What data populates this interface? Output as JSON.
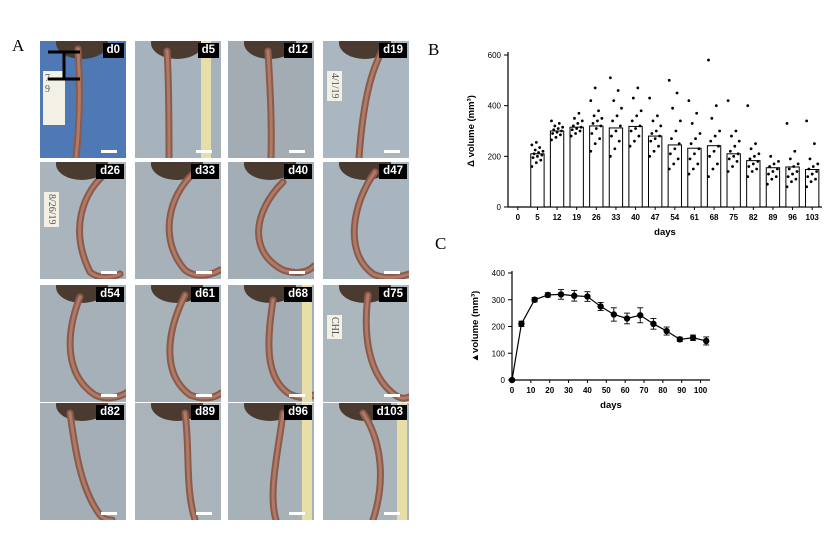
{
  "panels": {
    "a": "A",
    "b": "B",
    "c": "C"
  },
  "photos": [
    {
      "day": "d0",
      "note": "7\n9"
    },
    {
      "day": "d5"
    },
    {
      "day": "d12"
    },
    {
      "day": "d19",
      "note": "4/1/19"
    },
    {
      "day": "d26",
      "note": "8/26/19"
    },
    {
      "day": "d33"
    },
    {
      "day": "d40"
    },
    {
      "day": "d47"
    },
    {
      "day": "d54"
    },
    {
      "day": "d61"
    },
    {
      "day": "d68"
    },
    {
      "day": "d75",
      "note": "CHL"
    },
    {
      "day": "d82"
    },
    {
      "day": "d89"
    },
    {
      "day": "d96"
    },
    {
      "day": "d103"
    }
  ],
  "chart_data": [
    {
      "type": "bar",
      "panel": "B",
      "xlabel": "days",
      "ylabel": "Δ volume (mm³)",
      "ylim": [
        0,
        600
      ],
      "yticks": [
        0,
        200,
        400,
        600
      ],
      "categories": [
        "0",
        "5",
        "12",
        "19",
        "26",
        "33",
        "40",
        "47",
        "54",
        "61",
        "68",
        "75",
        "82",
        "89",
        "96",
        "103"
      ],
      "values": [
        0,
        210,
        300,
        315,
        320,
        312,
        318,
        280,
        245,
        232,
        242,
        210,
        183,
        155,
        158,
        148
      ],
      "points": [
        [],
        [
          160,
          175,
          185,
          195,
          200,
          205,
          210,
          215,
          220,
          225,
          235,
          245,
          255
        ],
        [
          265,
          275,
          285,
          290,
          295,
          300,
          305,
          310,
          315,
          320,
          330,
          340
        ],
        [
          280,
          290,
          300,
          305,
          310,
          315,
          320,
          330,
          340,
          350,
          370
        ],
        [
          220,
          250,
          270,
          290,
          310,
          320,
          330,
          340,
          350,
          360,
          380,
          420,
          470
        ],
        [
          200,
          230,
          260,
          280,
          300,
          320,
          340,
          360,
          390,
          420,
          460,
          510
        ],
        [
          240,
          260,
          280,
          300,
          310,
          320,
          340,
          360,
          380,
          430,
          470
        ],
        [
          200,
          220,
          240,
          260,
          270,
          280,
          290,
          300,
          320,
          340,
          360,
          430
        ],
        [
          150,
          170,
          190,
          210,
          230,
          250,
          270,
          300,
          340,
          390,
          450,
          500
        ],
        [
          130,
          150,
          170,
          190,
          210,
          230,
          250,
          270,
          290,
          330,
          370,
          420
        ],
        [
          120,
          150,
          170,
          200,
          220,
          240,
          260,
          280,
          300,
          350,
          400,
          580
        ],
        [
          140,
          160,
          180,
          190,
          200,
          210,
          220,
          240,
          260,
          280,
          300,
          420
        ],
        [
          120,
          140,
          150,
          160,
          170,
          180,
          190,
          200,
          210,
          230,
          250,
          400
        ],
        [
          90,
          110,
          120,
          130,
          140,
          150,
          160,
          170,
          180,
          200
        ],
        [
          80,
          100,
          110,
          120,
          130,
          140,
          150,
          160,
          170,
          190,
          220,
          330
        ],
        [
          80,
          100,
          110,
          120,
          130,
          140,
          150,
          160,
          170,
          190,
          250,
          340
        ]
      ],
      "bar_color": "#ffffff",
      "point_color": "#000000"
    },
    {
      "type": "line",
      "panel": "C",
      "xlabel": "days",
      "ylabel": "▲volume (mm³)",
      "xlim": [
        0,
        105
      ],
      "ylim": [
        0,
        400
      ],
      "xticks": [
        0,
        10,
        20,
        30,
        40,
        50,
        60,
        70,
        80,
        90,
        100
      ],
      "yticks": [
        0,
        100,
        200,
        300,
        400
      ],
      "x": [
        0,
        5,
        12,
        19,
        26,
        33,
        40,
        47,
        54,
        61,
        68,
        75,
        82,
        89,
        96,
        103
      ],
      "y": [
        0,
        210,
        300,
        318,
        320,
        315,
        312,
        275,
        245,
        230,
        242,
        210,
        183,
        152,
        158,
        146
      ],
      "err": [
        0,
        10,
        8,
        8,
        18,
        20,
        18,
        15,
        25,
        20,
        28,
        20,
        15,
        8,
        10,
        15
      ],
      "color": "#000000"
    }
  ]
}
